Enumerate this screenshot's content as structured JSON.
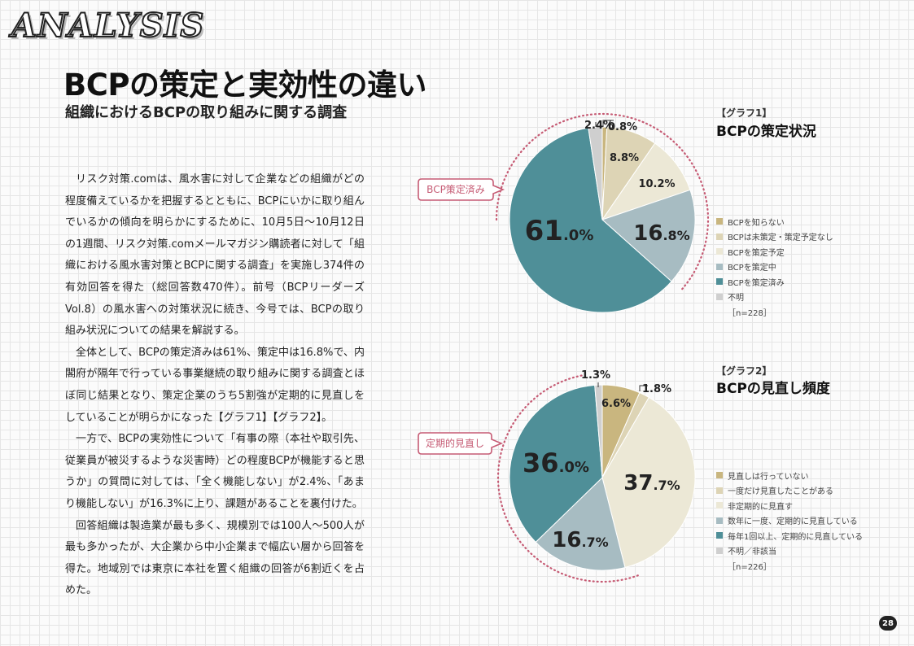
{
  "section_tag": "ANALYSIS",
  "title": "BCPの策定と実効性の違い",
  "subtitle": "組織におけるBCPの取り組みに関する調査",
  "body": [
    "リスク対策.comは、風水害に対して企業などの組織がどの程度備えているかを把握するとともに、BCPにいかに取り組んでいるかの傾向を明らかにするために、10月5日～10月12日の1週間、リスク対策.comメールマガジン購読者に対して「組織における風水害対策とBCPに関する調査」を実施し374件の有効回答を得た（総回答数470件）。前号（BCPリーダーズVol.8）の風水害への対策状況に続き、今号では、BCPの取り組み状況についての結果を解説する。",
    "全体として、BCPの策定済みは61%、策定中は16.8%で、内閣府が隔年で行っている事業継続の取り組みに関する調査とほぼ同じ結果となり、策定企業のうち5割強が定期的に見直しをしていることが明らかになった【グラフ1】【グラフ2】。",
    "一方で、BCPの実効性について「有事の際（本社や取引先、従業員が被災するような災害時）どの程度BCPが機能すると思うか」の質問に対しては、「全く機能しない」が2.4%、「あまり機能しない」が16.3%に上り、課題があることを裏付けた。",
    "回答組織は製造業が最も多く、規模別では100人～500人が最も多かったが、大企業から中小企業まで幅広い層から回答を得た。地域別では東京に本社を置く組織の回答が6割近くを占めた。"
  ],
  "chart_data": [
    {
      "type": "pie",
      "label": "【グラフ1】",
      "title": "BCPの策定状況",
      "categories": [
        "BCPを知らない",
        "BCPは未策定・策定予定なし",
        "BCPを策定予定",
        "BCPを策定中",
        "BCPを策定済み",
        "不明"
      ],
      "values": [
        0.8,
        8.8,
        10.2,
        16.8,
        61.0,
        2.4
      ],
      "value_labels": [
        "0.8%",
        "8.8%",
        "10.2%",
        "16.8%",
        "61.0%",
        "2.4%"
      ],
      "colors": [
        "#c9b67f",
        "#ddd4b5",
        "#ece8d6",
        "#a7bcc2",
        "#4f8f98",
        "#cfcfcf"
      ],
      "callout": "BCP策定済み",
      "note": "［n=228］"
    },
    {
      "type": "pie",
      "label": "【グラフ2】",
      "title": "BCPの見直し頻度",
      "categories": [
        "見直しは行っていない",
        "一度だけ見直したことがある",
        "非定期的に見直す",
        "数年に一度、定期的に見直している",
        "毎年1回以上、定期的に見直している",
        "不明／非該当"
      ],
      "values": [
        6.6,
        1.8,
        37.7,
        16.7,
        36.0,
        1.3
      ],
      "value_labels": [
        "6.6%",
        "1.8%",
        "37.7%",
        "16.7%",
        "36.0%",
        "1.3%"
      ],
      "colors": [
        "#c9b67f",
        "#ddd4b5",
        "#ece8d6",
        "#a7bcc2",
        "#4f8f98",
        "#cfcfcf"
      ],
      "callout": "定期的見直し",
      "note": "［n=226］"
    }
  ],
  "page_number": "28"
}
